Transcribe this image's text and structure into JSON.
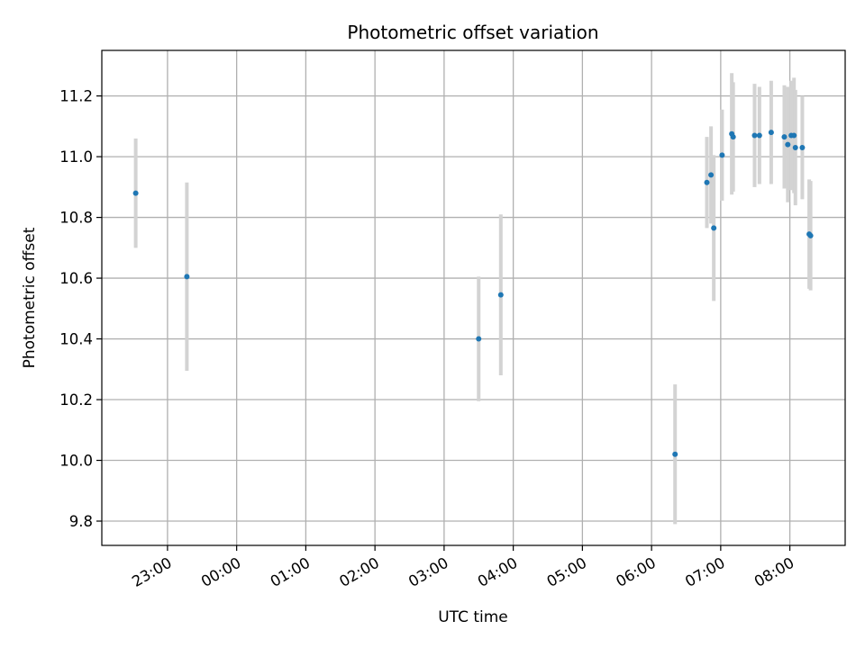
{
  "chart_data": {
    "type": "scatter",
    "title": "Photometric offset variation",
    "xlabel": "UTC time",
    "ylabel": "Photometric offset",
    "x_unit": "hours relative to 00:00 UTC",
    "xlim": [
      -1.95,
      8.8
    ],
    "ylim": [
      9.72,
      11.35
    ],
    "grid": true,
    "x_ticks": [
      {
        "value": -1,
        "label": "23:00"
      },
      {
        "value": 0,
        "label": "00:00"
      },
      {
        "value": 1,
        "label": "01:00"
      },
      {
        "value": 2,
        "label": "02:00"
      },
      {
        "value": 3,
        "label": "03:00"
      },
      {
        "value": 4,
        "label": "04:00"
      },
      {
        "value": 5,
        "label": "05:00"
      },
      {
        "value": 6,
        "label": "06:00"
      },
      {
        "value": 7,
        "label": "07:00"
      },
      {
        "value": 8,
        "label": "08:00"
      }
    ],
    "y_ticks": [
      {
        "value": 9.8,
        "label": "9.8"
      },
      {
        "value": 10.0,
        "label": "10.0"
      },
      {
        "value": 10.2,
        "label": "10.2"
      },
      {
        "value": 10.4,
        "label": "10.4"
      },
      {
        "value": 10.6,
        "label": "10.6"
      },
      {
        "value": 10.8,
        "label": "10.8"
      },
      {
        "value": 11.0,
        "label": "11.0"
      },
      {
        "value": 11.2,
        "label": "11.2"
      }
    ],
    "marker_color": "#1f77b4",
    "errorbar_color": "#d3d3d3",
    "points": [
      {
        "x": -1.46,
        "y": 10.88,
        "err": 0.18
      },
      {
        "x": -0.72,
        "y": 10.605,
        "err": 0.31
      },
      {
        "x": 3.5,
        "y": 10.4,
        "err": 0.205
      },
      {
        "x": 3.82,
        "y": 10.545,
        "err": 0.265
      },
      {
        "x": 6.34,
        "y": 10.02,
        "err": 0.23
      },
      {
        "x": 6.8,
        "y": 10.915,
        "err": 0.15
      },
      {
        "x": 6.86,
        "y": 10.94,
        "err": 0.16
      },
      {
        "x": 6.9,
        "y": 10.765,
        "err": 0.24
      },
      {
        "x": 7.02,
        "y": 11.005,
        "err": 0.15
      },
      {
        "x": 7.16,
        "y": 11.075,
        "err": 0.2
      },
      {
        "x": 7.18,
        "y": 11.065,
        "err": 0.18
      },
      {
        "x": 7.49,
        "y": 11.07,
        "err": 0.17
      },
      {
        "x": 7.56,
        "y": 11.07,
        "err": 0.16
      },
      {
        "x": 7.73,
        "y": 11.08,
        "err": 0.17
      },
      {
        "x": 7.92,
        "y": 11.065,
        "err": 0.17
      },
      {
        "x": 7.97,
        "y": 11.04,
        "err": 0.19
      },
      {
        "x": 8.02,
        "y": 11.07,
        "err": 0.18
      },
      {
        "x": 8.06,
        "y": 11.07,
        "err": 0.19
      },
      {
        "x": 8.08,
        "y": 11.03,
        "err": 0.19
      },
      {
        "x": 8.18,
        "y": 11.03,
        "err": 0.17
      },
      {
        "x": 8.28,
        "y": 10.745,
        "err": 0.18
      },
      {
        "x": 8.3,
        "y": 10.74,
        "err": 0.18
      }
    ]
  }
}
